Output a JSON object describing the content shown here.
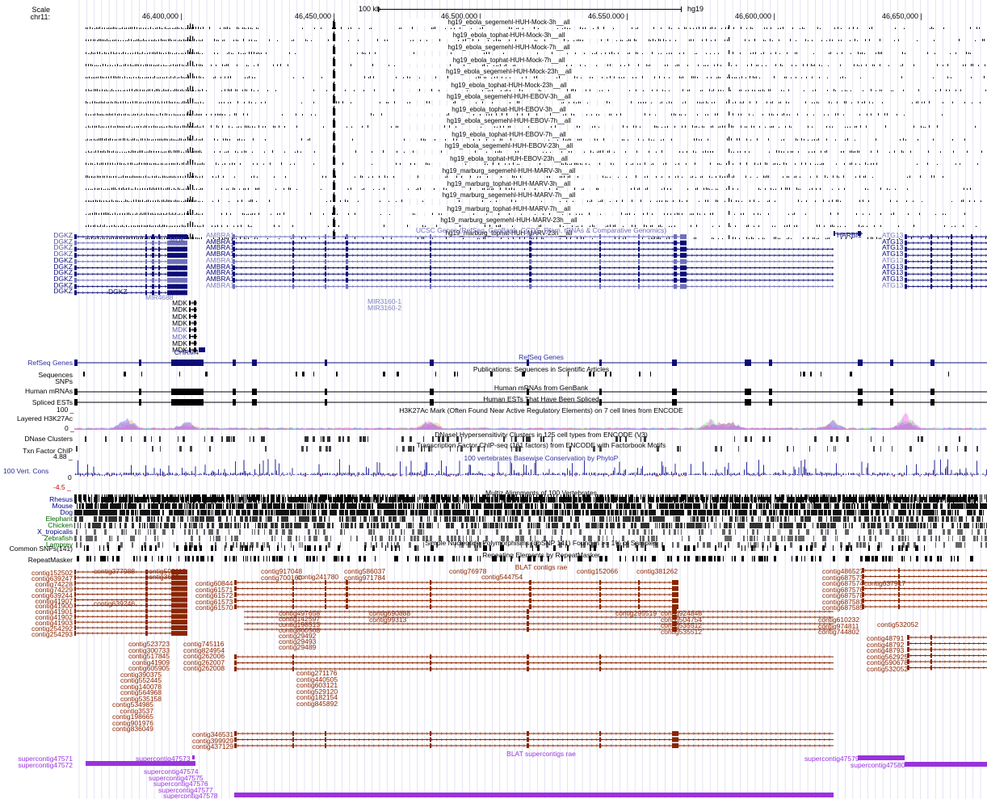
{
  "header": {
    "scale_label": "Scale",
    "chr_label": "chr11:",
    "scalebar_label": "100 kb",
    "assembly": "hg19",
    "ruler_ticks": [
      "46,400,000",
      "46,450,000",
      "46,500,000",
      "46,550,000",
      "46,600,000",
      "46,650,000"
    ]
  },
  "rnaseq_tracks": [
    "hg19_ebola_segemehl-HUH-Mock-3h__all",
    "hg19_ebola_tophat-HUH-Mock-3h__all",
    "hg19_ebola_segemehl-HUH-Mock-7h__all",
    "hg19_ebola_tophat-HUH-Mock-7h__all",
    "hg19_ebola_segemehl-HUH-Mock-23h__all",
    "hg19_ebola_tophat-HUH-Mock-23h__all",
    "hg19_ebola_segemehl-HUH-EBOV-3h__all",
    "hg19_ebola_tophat-HUH-EBOV-3h__all",
    "hg19_ebola_segemehl-HUH-EBOV-7h__all",
    "hg19_ebola_tophat-HUH-EBOV-7h__all",
    "hg19_ebola_segemehl-HUH-EBOV-23h__all",
    "hg19_ebola_tophat-HUH-EBOV-23h__all",
    "hg19_marburg_segemehl-HUH-MARV-3h__all",
    "hg19_marburg_tophat-HUH-MARV-3h__all",
    "hg19_marburg_segemehl-HUH-MARV-7h__all",
    "hg19_marburg_tophat-HUH-MARV-7h__all",
    "hg19_marburg_segemehl-HUH-MARV-23h__all",
    "hg19_marburg_tophat-HUH-MARV-23h__all"
  ],
  "ucsc_genes": {
    "title": "UCSC Genes (RefSeq, GenBank, CCDS, Rfam, tRNAs & Comparative Genomics)",
    "left_labels": [
      "DGKZ",
      "DGKZ",
      "DGKZ",
      "DGKZ",
      "DGKZ",
      "DGKZ",
      "DGKZ",
      "DGKZ",
      "DGKZ",
      "DGKZ"
    ],
    "mdk_label": "MDK",
    "ambra_labels": [
      "AMBRA1",
      "AMBRA1",
      "AMBRA1",
      "AMBRA1",
      "AMBRA1",
      "AMBRA1",
      "AMBRA1",
      "AMBRA1",
      "AMBRA1"
    ],
    "harbi_label": "HARBI1",
    "atg_labels": [
      "ATG13",
      "ATG13",
      "ATG13",
      "ATG13",
      "ATG13",
      "ATG13",
      "ATG13",
      "ATG13",
      "ATG13"
    ],
    "mir3160": [
      "MIR3160-1",
      "MIR3160-2"
    ],
    "dgkz_inline": "DGKZ",
    "mir4688": "MIR4688",
    "mdk_stack": [
      "MDK",
      "MDK",
      "MDK",
      "MDK",
      "MDK",
      "MDK",
      "MDK",
      "MDK"
    ],
    "chrm4": "CHRM4"
  },
  "annotation_tracks": {
    "refseq_label": "RefSeq Genes",
    "refseq_title": "RefSeq Genes",
    "sequences_label": "Sequences",
    "snps_label": "SNPs",
    "publications_title": "Publications: Sequences in Scientific Articles",
    "mrna_label": "Human mRNAs",
    "mrna_title": "Human mRNAs from GenBank",
    "est_label": "Spliced ESTs",
    "est_title": "Human ESTs That Have Been Spliced",
    "h3k_label": "Layered H3K27Ac",
    "h3k_max": "100 _",
    "h3k_min": "0 _",
    "h3k_title": "H3K27Ac Mark (Often Found Near Active Regulatory Elements) on 7 cell lines from ENCODE",
    "dnase_label": "DNase Clusters",
    "dnase_title": "DNaseI Hypersensitivity Clusters in 125 cell types from ENCODE (V3)",
    "tfchip_label": "Txn Factor ChIP",
    "tfchip_title": "Transcription Factor ChIP-seq (161 factors) from ENCODE with Factorbook Motifs",
    "cons_max": "4.88 _",
    "cons_label": "100 Vert. Cons",
    "cons_zero": "0",
    "cons_min": "-4.5 _",
    "cons_title": "100 vertebrates Basewise Conservation by PhyloP",
    "multiz_title": "Multiz Alignments of 100 Vertebrates",
    "species": [
      "Rhesus",
      "Mouse",
      "Dog",
      "Elephant",
      "Chicken",
      "X_tropicalis",
      "Zebrafish",
      "Lamprey"
    ],
    "species_colors": [
      "#000080",
      "#000080",
      "#000080",
      "#006600",
      "#006600",
      "#000080",
      "#006600",
      "#006600"
    ],
    "snp_label": "Common SNPs(141)",
    "snp_title": "Simple Nucleotide Polymorphisms (dbSNP 141) Found in >= 1% of Samples",
    "rmsk_label": "RepeatMasker",
    "rmsk_title": "Repeating Elements by RepeatMasker"
  },
  "blat_contigs": {
    "title": "BLAT contigs rae",
    "left_labels": [
      "contig152502",
      "contig639247",
      "contig74228",
      "contig74229",
      "contig639244",
      "contig41907",
      "contig41900",
      "contig41901",
      "contig41902",
      "contig41903",
      "contig254292",
      "contig254293"
    ],
    "col_a": [
      "contig377988",
      "contig639246"
    ],
    "col_b": [
      "contig503115",
      "contig3635"
    ],
    "col_c": [
      "contig60844",
      "contig61571",
      "contig61572",
      "contig61573",
      "contig61570"
    ],
    "col_d": [
      "contig917048",
      "contig700160"
    ],
    "col_e": [
      "contig241780"
    ],
    "col_f": [
      "contig586037",
      "contig971784"
    ],
    "col_g": [
      "contig76978"
    ],
    "col_h": [
      "contig544754"
    ],
    "col_i": [
      "contig152066"
    ],
    "col_j": [
      "contig381262"
    ],
    "right_a": [
      "contig486527",
      "contig687573",
      "contig687574",
      "contig687576",
      "contig687578",
      "contig687581",
      "contig687585"
    ],
    "right_b": [
      "contig637917"
    ],
    "mid_a": [
      "contig497658",
      "contig142597",
      "contig198513",
      "contig860568",
      "contig29492",
      "contig29493",
      "contig29489"
    ],
    "mid_b": [
      "contig690888",
      "contig99313"
    ],
    "mid_c": [
      "contig295519"
    ],
    "mid_d": [
      "contig924848",
      "contig504754",
      "contig535512",
      "contig535512"
    ],
    "right_c": [
      "contig610232",
      "contig974811",
      "contig744802"
    ],
    "right_d": [
      "contig532052"
    ],
    "right_e": [
      "contig48791",
      "contig48792",
      "contig48793",
      "contig562925",
      "contig590678",
      "contig532052"
    ],
    "stack_a": [
      "contig523723",
      "contig300733",
      "contig517845",
      "contig41909",
      "contig605905",
      "contig390375",
      "contig552445",
      "contig140078",
      "contig564968",
      "contig535158",
      "contig534985",
      "contig3537",
      "contig198665",
      "contig901976",
      "contig836049"
    ],
    "stack_b": [
      "contig745116",
      "contig824954",
      "contig262006",
      "contig262007",
      "contig262008"
    ],
    "stack_c": [
      "contig271176",
      "contig440505",
      "contig603121",
      "contig529120",
      "contig182154",
      "contig845892"
    ],
    "bottom": [
      "contig346531",
      "contig399929",
      "contig437129"
    ]
  },
  "blat_supercontigs": {
    "title": "BLAT supercontigs rae",
    "left_labels": [
      "supercontig47571",
      "supercontig47572"
    ],
    "inline_a": "supercontig47573",
    "stack": [
      "supercontig47574",
      "supercontig47575",
      "supercontig47576",
      "supercontig47577",
      "supercontig47578"
    ],
    "right_a": "supercontig47579",
    "right_b": "supercontig47580"
  },
  "colors": {
    "gene_blue": "#0c0c78",
    "gene_light": "#6f6fb8",
    "contig_brown": "#8b2500",
    "supercontig_purple": "#9933dd",
    "grid_line": "#d8d8f0",
    "conservation": "#2d2d9a"
  }
}
